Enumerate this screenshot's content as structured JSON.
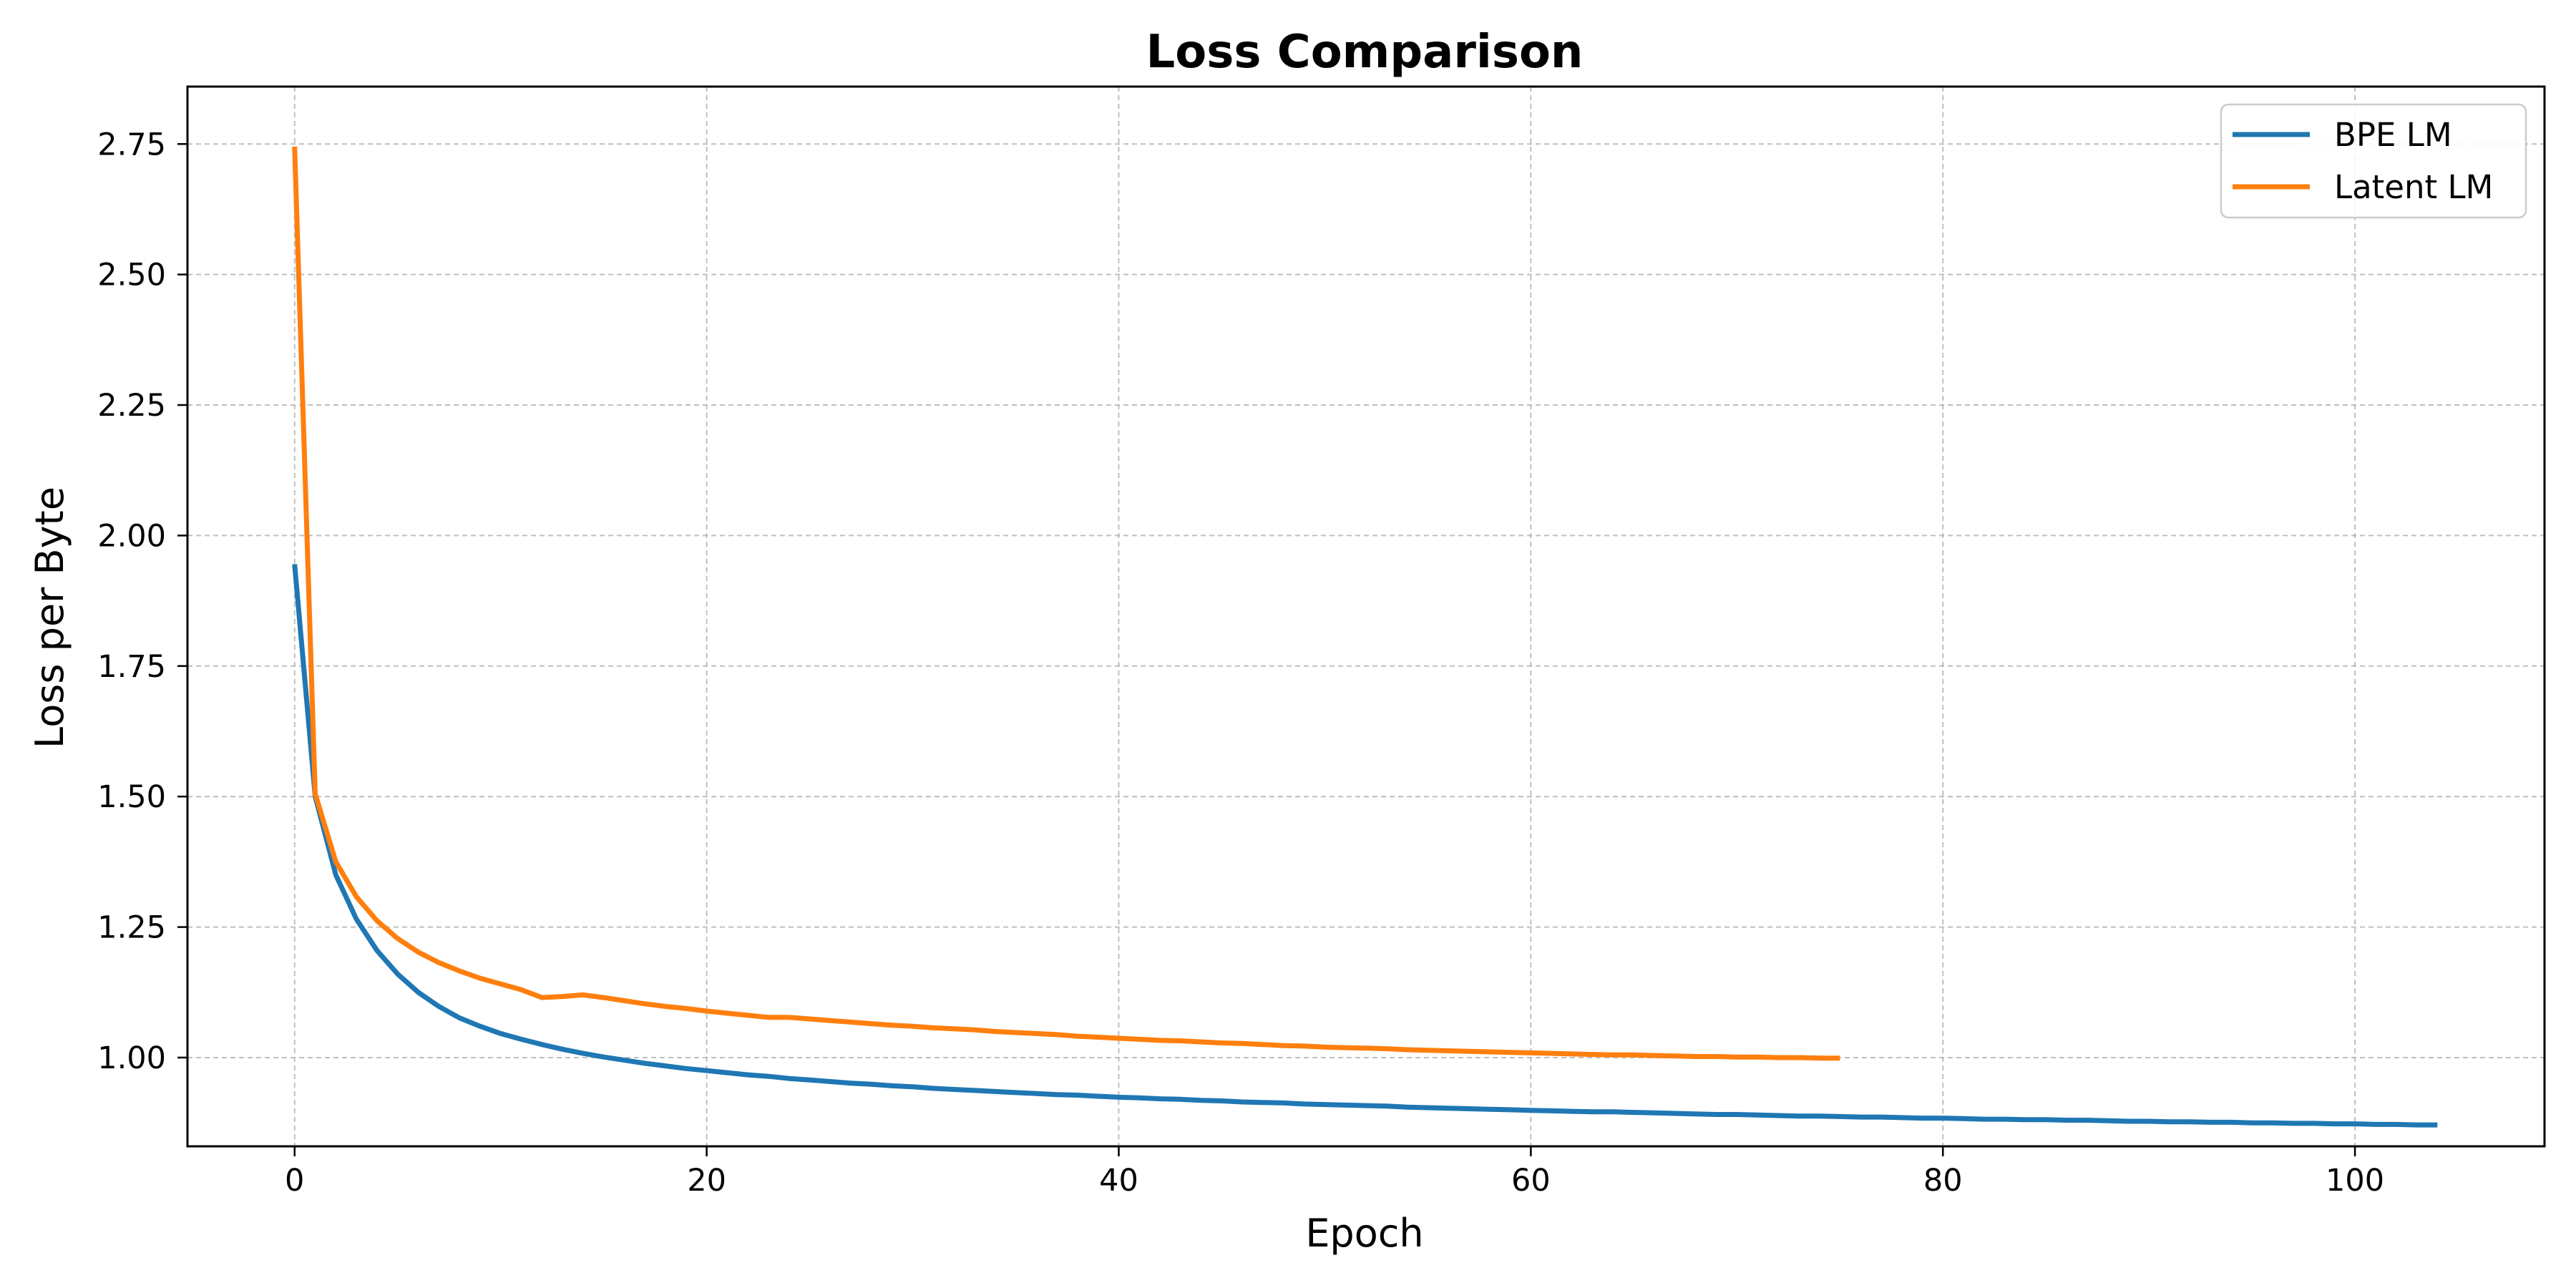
{
  "chart_data": {
    "type": "line",
    "title": "Loss Comparison",
    "xlabel": "Epoch",
    "ylabel": "Loss per Byte",
    "xlim": [
      -5.2,
      109.2
    ],
    "ylim": [
      0.83,
      2.86
    ],
    "xticks": [
      0,
      20,
      40,
      60,
      80,
      100
    ],
    "yticks": [
      1.0,
      1.25,
      1.5,
      1.75,
      2.0,
      2.25,
      2.5,
      2.75
    ],
    "grid": true,
    "legend": "top-right",
    "series": [
      {
        "name": "BPE LM",
        "color": "#1f77b4",
        "x_start": 0,
        "values": [
          1.945,
          1.5,
          1.35,
          1.265,
          1.205,
          1.16,
          1.125,
          1.098,
          1.076,
          1.06,
          1.046,
          1.035,
          1.025,
          1.016,
          1.008,
          1.001,
          0.995,
          0.989,
          0.984,
          0.979,
          0.975,
          0.971,
          0.967,
          0.964,
          0.96,
          0.957,
          0.954,
          0.951,
          0.949,
          0.946,
          0.944,
          0.941,
          0.939,
          0.937,
          0.935,
          0.933,
          0.931,
          0.929,
          0.928,
          0.926,
          0.924,
          0.923,
          0.921,
          0.92,
          0.918,
          0.917,
          0.915,
          0.914,
          0.913,
          0.911,
          0.91,
          0.909,
          0.908,
          0.907,
          0.905,
          0.904,
          0.903,
          0.902,
          0.901,
          0.9,
          0.899,
          0.898,
          0.897,
          0.896,
          0.896,
          0.895,
          0.894,
          0.893,
          0.892,
          0.891,
          0.891,
          0.89,
          0.889,
          0.888,
          0.888,
          0.887,
          0.886,
          0.886,
          0.885,
          0.884,
          0.884,
          0.883,
          0.882,
          0.882,
          0.881,
          0.881,
          0.88,
          0.88,
          0.879,
          0.878,
          0.878,
          0.877,
          0.877,
          0.876,
          0.876,
          0.875,
          0.875,
          0.874,
          0.874,
          0.873,
          0.873,
          0.872,
          0.872,
          0.871,
          0.871
        ]
      },
      {
        "name": "Latent LM",
        "color": "#ff7f0e",
        "x_start": 0,
        "values": [
          2.745,
          1.505,
          1.375,
          1.308,
          1.262,
          1.228,
          1.202,
          1.182,
          1.166,
          1.152,
          1.141,
          1.13,
          1.115,
          1.117,
          1.12,
          1.115,
          1.109,
          1.103,
          1.098,
          1.094,
          1.089,
          1.085,
          1.081,
          1.077,
          1.077,
          1.074,
          1.071,
          1.068,
          1.065,
          1.062,
          1.06,
          1.057,
          1.055,
          1.053,
          1.05,
          1.048,
          1.046,
          1.044,
          1.041,
          1.039,
          1.037,
          1.035,
          1.033,
          1.032,
          1.03,
          1.028,
          1.027,
          1.025,
          1.023,
          1.022,
          1.02,
          1.019,
          1.018,
          1.017,
          1.015,
          1.014,
          1.013,
          1.012,
          1.011,
          1.01,
          1.009,
          1.008,
          1.007,
          1.006,
          1.005,
          1.005,
          1.004,
          1.003,
          1.002,
          1.002,
          1.001,
          1.001,
          1.0,
          1.0,
          0.999,
          0.999
        ]
      }
    ]
  }
}
